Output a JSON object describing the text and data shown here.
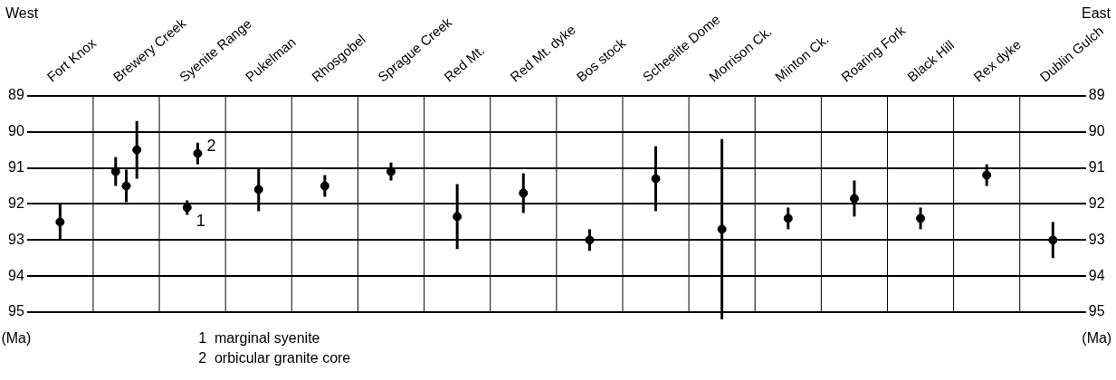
{
  "chart_data": {
    "type": "scatter",
    "categories": [
      "Fort Knox",
      "Brewery Creek",
      "Syenite Range",
      "Pukelman",
      "Rhosgobel",
      "Sprague Creek",
      "Red Mt.",
      "Red Mt. dyke",
      "Bos stock",
      "Scheelite Dome",
      "Morrison Ck.",
      "Minton Ck.",
      "Roaring Fork",
      "Black Hill",
      "Rex dyke",
      "Dublin Gulch"
    ],
    "series": [
      {
        "color": "#000000",
        "x": [
          "Fort Knox",
          "Brewery Creek",
          "Brewery Creek",
          "Brewery Creek",
          "Pukelman",
          "Rhosgobel",
          "Sprague Creek",
          "Red Mt.",
          "Red Mt. dyke",
          "Bos stock",
          "Scheelite Dome",
          "Morrison Ck.",
          "Minton Ck.",
          "Roaring Fork",
          "Black Hill",
          "Rex dyke",
          "Dublin Gulch"
        ],
        "values": [
          92.5,
          91.1,
          91.5,
          90.5,
          91.6,
          91.5,
          91.1,
          92.35,
          91.7,
          93.0,
          91.3,
          92.7,
          92.4,
          91.85,
          92.4,
          91.2,
          93.0
        ],
        "errors": [
          0.5,
          0.4,
          0.45,
          0.8,
          0.6,
          0.3,
          0.25,
          0.9,
          0.55,
          0.3,
          0.9,
          2.5,
          0.3,
          0.5,
          0.3,
          0.3,
          0.5
        ]
      },
      {
        "name": "1",
        "color": "#000000",
        "x": [
          "Syenite Range"
        ],
        "values": [
          92.1
        ],
        "errors": [
          0.2
        ]
      },
      {
        "name": "2",
        "color": "#000000",
        "x": [
          "Syenite Range"
        ],
        "values": [
          90.6
        ],
        "errors": [
          0.3
        ]
      }
    ],
    "ylabel": "(Ma)",
    "y2label": "(Ma)",
    "ylim": [
      95,
      89
    ],
    "yticks": [
      89,
      90,
      91,
      92,
      93,
      94,
      95
    ],
    "y2lim": [
      95,
      89
    ],
    "y2ticks": [
      89,
      90,
      91,
      92,
      93,
      94,
      95
    ],
    "annotations": [
      "West",
      "East",
      "1  marginal syenite",
      "2  orbicular granite core"
    ],
    "grid": true,
    "marker": "circle"
  }
}
